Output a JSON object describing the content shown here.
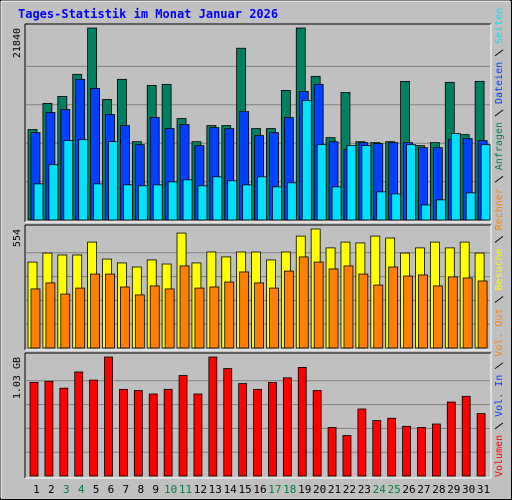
{
  "chart_data": [
    {
      "type": "bar",
      "title": "Tages-Statistik im Monat Januar 2026",
      "ylim": [
        0,
        21840
      ],
      "yticks": [
        21840
      ],
      "grid": true,
      "series": [
        {
          "name": "Anfragen",
          "color": "#008060",
          "values": [
            10290,
            13260,
            14060,
            16570,
            21840,
            13710,
            16000,
            8910,
            15310,
            15430,
            11540,
            8910,
            10740,
            10740,
            19540,
            10400,
            10400,
            14740,
            21840,
            16340,
            9370,
            14510,
            8910,
            8800,
            8910,
            15770,
            8460,
            8800,
            15660,
            9710,
            15770
          ]
        },
        {
          "name": "Dateien",
          "color": "#0040ff",
          "values": [
            9940,
            12230,
            12570,
            16000,
            14970,
            12000,
            10740,
            8570,
            11660,
            10400,
            10860,
            8460,
            10510,
            10400,
            12340,
            9600,
            9940,
            11660,
            14630,
            15430,
            8910,
            8000,
            8800,
            8690,
            8800,
            8800,
            8230,
            8230,
            9140,
            9260,
            9030
          ]
        },
        {
          "name": "Seiten",
          "color": "#00e0ff",
          "values": [
            4110,
            6290,
            9030,
            9140,
            4110,
            8910,
            4000,
            3890,
            4000,
            4340,
            4570,
            3890,
            4910,
            4460,
            4000,
            4910,
            3770,
            4230,
            13600,
            8570,
            3770,
            8460,
            8460,
            3200,
            2970,
            8570,
            1710,
            2290,
            9830,
            3090,
            8570
          ]
        }
      ]
    },
    {
      "type": "bar",
      "ylim": [
        0,
        554
      ],
      "yticks": [
        554
      ],
      "grid": true,
      "series": [
        {
          "name": "Besuche",
          "color": "#ffff00",
          "values": [
            400,
            442,
            433,
            433,
            493,
            414,
            396,
            377,
            410,
            391,
            535,
            396,
            447,
            424,
            447,
            447,
            410,
            447,
            521,
            554,
            466,
            493,
            489,
            521,
            512,
            442,
            466,
            493,
            466,
            493,
            442
          ]
        },
        {
          "name": "Rechner",
          "color": "#ff8000",
          "values": [
            275,
            303,
            251,
            279,
            344,
            344,
            284,
            247,
            289,
            275,
            382,
            279,
            284,
            307,
            354,
            303,
            279,
            358,
            424,
            400,
            368,
            382,
            344,
            293,
            377,
            335,
            340,
            289,
            331,
            326,
            312
          ]
        }
      ]
    },
    {
      "type": "bar",
      "ylim": [
        0,
        1.03
      ],
      "yticks": [
        {
          "value": 1.03,
          "label": "1.03 GB"
        }
      ],
      "grid": true,
      "categories": [
        "1",
        "2",
        "3",
        "4",
        "5",
        "6",
        "7",
        "8",
        "9",
        "10",
        "11",
        "12",
        "13",
        "14",
        "15",
        "16",
        "17",
        "18",
        "19",
        "20",
        "21",
        "22",
        "23",
        "24",
        "25",
        "26",
        "27",
        "28",
        "29",
        "30",
        "31"
      ],
      "category_colors": [
        "#000000",
        "#000000",
        "#008040",
        "#008040",
        "#000000",
        "#000000",
        "#000000",
        "#000000",
        "#000000",
        "#008040",
        "#008040",
        "#000000",
        "#000000",
        "#000000",
        "#000000",
        "#000000",
        "#008040",
        "#008040",
        "#000000",
        "#000000",
        "#000000",
        "#000000",
        "#000000",
        "#008040",
        "#008040",
        "#000000",
        "#000000",
        "#000000",
        "#000000",
        "#000000",
        "#000000"
      ],
      "series": [
        {
          "name": "Volumen",
          "color": "#ff0000",
          "values": [
            0.81,
            0.82,
            0.76,
            0.9,
            0.83,
            1.03,
            0.75,
            0.74,
            0.71,
            0.75,
            0.87,
            0.71,
            1.03,
            0.93,
            0.8,
            0.75,
            0.81,
            0.85,
            0.94,
            0.74,
            0.42,
            0.35,
            0.58,
            0.48,
            0.5,
            0.43,
            0.42,
            0.45,
            0.64,
            0.69,
            0.54
          ]
        }
      ],
      "extra_labels": [
        {
          "name": "Vol. In",
          "color": "#0040ff"
        },
        {
          "name": "Vol. Out",
          "color": "#ff8000"
        }
      ]
    }
  ]
}
